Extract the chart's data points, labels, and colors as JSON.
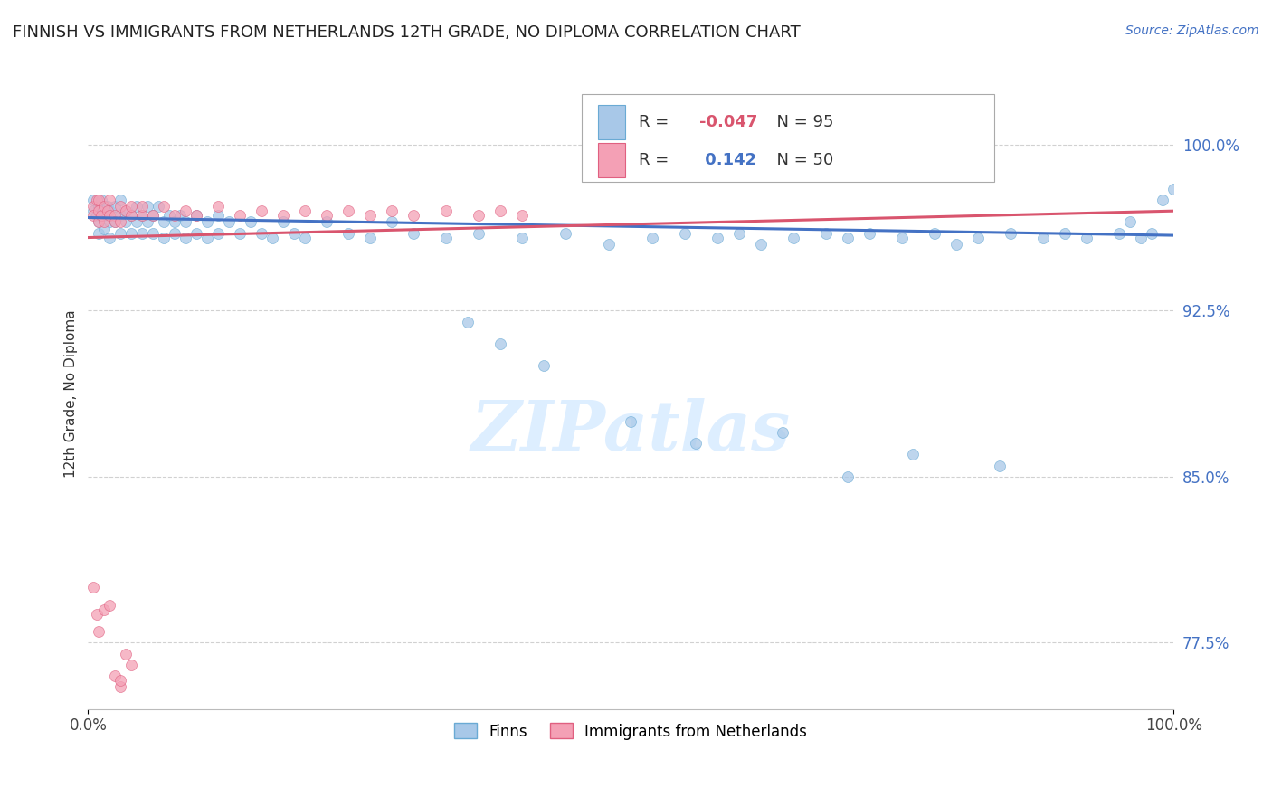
{
  "title": "FINNISH VS IMMIGRANTS FROM NETHERLANDS 12TH GRADE, NO DIPLOMA CORRELATION CHART",
  "source": "Source: ZipAtlas.com",
  "ylabel": "12th Grade, No Diploma",
  "xlim": [
    0.0,
    1.0
  ],
  "ylim": [
    0.745,
    1.03
  ],
  "yticks": [
    0.775,
    0.85,
    0.925,
    1.0
  ],
  "ytick_labels": [
    "77.5%",
    "85.0%",
    "92.5%",
    "100.0%"
  ],
  "xtick_labels": [
    "0.0%",
    "100.0%"
  ],
  "r_finns": -0.047,
  "n_finns": 95,
  "r_netherlands": 0.142,
  "n_netherlands": 50,
  "legend_labels": [
    "Finns",
    "Immigrants from Netherlands"
  ],
  "color_finns": "#a8c8e8",
  "color_netherlands": "#f4a0b5",
  "color_finns_edge": "#6aaad4",
  "color_netherlands_edge": "#e06080",
  "trendline_finns": "#4472c4",
  "trendline_netherlands": "#d9556e",
  "watermark": "ZIPatlas",
  "background_color": "#ffffff",
  "scatter_alpha": 0.75,
  "dot_size": 75,
  "finns_x": [
    0.005,
    0.005,
    0.008,
    0.01,
    0.01,
    0.01,
    0.012,
    0.015,
    0.015,
    0.018,
    0.02,
    0.02,
    0.02,
    0.025,
    0.025,
    0.03,
    0.03,
    0.03,
    0.035,
    0.035,
    0.04,
    0.04,
    0.045,
    0.045,
    0.05,
    0.05,
    0.055,
    0.055,
    0.06,
    0.06,
    0.065,
    0.07,
    0.07,
    0.075,
    0.08,
    0.08,
    0.085,
    0.09,
    0.09,
    0.1,
    0.1,
    0.11,
    0.11,
    0.12,
    0.12,
    0.13,
    0.14,
    0.15,
    0.16,
    0.17,
    0.18,
    0.19,
    0.2,
    0.22,
    0.24,
    0.26,
    0.28,
    0.3,
    0.33,
    0.36,
    0.4,
    0.44,
    0.48,
    0.52,
    0.55,
    0.58,
    0.6,
    0.62,
    0.65,
    0.68,
    0.7,
    0.72,
    0.75,
    0.78,
    0.8,
    0.82,
    0.85,
    0.88,
    0.9,
    0.92,
    0.95,
    0.97,
    0.98,
    0.99,
    1.0,
    0.35,
    0.38,
    0.42,
    0.5,
    0.56,
    0.64,
    0.7,
    0.76,
    0.84,
    0.96
  ],
  "finns_y": [
    0.97,
    0.975,
    0.968,
    0.972,
    0.965,
    0.96,
    0.975,
    0.968,
    0.962,
    0.972,
    0.965,
    0.97,
    0.958,
    0.972,
    0.965,
    0.968,
    0.96,
    0.975,
    0.965,
    0.97,
    0.968,
    0.96,
    0.972,
    0.965,
    0.968,
    0.96,
    0.972,
    0.965,
    0.968,
    0.96,
    0.972,
    0.965,
    0.958,
    0.968,
    0.965,
    0.96,
    0.968,
    0.965,
    0.958,
    0.968,
    0.96,
    0.965,
    0.958,
    0.968,
    0.96,
    0.965,
    0.96,
    0.965,
    0.96,
    0.958,
    0.965,
    0.96,
    0.958,
    0.965,
    0.96,
    0.958,
    0.965,
    0.96,
    0.958,
    0.96,
    0.958,
    0.96,
    0.955,
    0.958,
    0.96,
    0.958,
    0.96,
    0.955,
    0.958,
    0.96,
    0.958,
    0.96,
    0.958,
    0.96,
    0.955,
    0.958,
    0.96,
    0.958,
    0.96,
    0.958,
    0.96,
    0.958,
    0.96,
    0.975,
    0.98,
    0.92,
    0.91,
    0.9,
    0.875,
    0.865,
    0.87,
    0.85,
    0.86,
    0.855,
    0.965
  ],
  "netherlands_x": [
    0.005,
    0.005,
    0.008,
    0.01,
    0.01,
    0.01,
    0.012,
    0.015,
    0.015,
    0.018,
    0.02,
    0.02,
    0.025,
    0.025,
    0.03,
    0.03,
    0.035,
    0.04,
    0.04,
    0.05,
    0.05,
    0.06,
    0.07,
    0.08,
    0.09,
    0.1,
    0.12,
    0.14,
    0.16,
    0.18,
    0.2,
    0.22,
    0.24,
    0.26,
    0.28,
    0.3,
    0.33,
    0.36,
    0.38,
    0.4,
    0.005,
    0.008,
    0.01,
    0.015,
    0.02,
    0.025,
    0.03,
    0.03,
    0.035,
    0.04
  ],
  "netherlands_y": [
    0.972,
    0.968,
    0.975,
    0.97,
    0.965,
    0.975,
    0.968,
    0.972,
    0.965,
    0.97,
    0.968,
    0.975,
    0.968,
    0.965,
    0.972,
    0.965,
    0.97,
    0.968,
    0.972,
    0.968,
    0.972,
    0.968,
    0.972,
    0.968,
    0.97,
    0.968,
    0.972,
    0.968,
    0.97,
    0.968,
    0.97,
    0.968,
    0.97,
    0.968,
    0.97,
    0.968,
    0.97,
    0.968,
    0.97,
    0.968,
    0.8,
    0.788,
    0.78,
    0.79,
    0.792,
    0.76,
    0.755,
    0.758,
    0.77,
    0.765
  ],
  "trendline_finns_start": 0.967,
  "trendline_finns_end": 0.959,
  "trendline_neth_start": 0.958,
  "trendline_neth_end": 0.97
}
